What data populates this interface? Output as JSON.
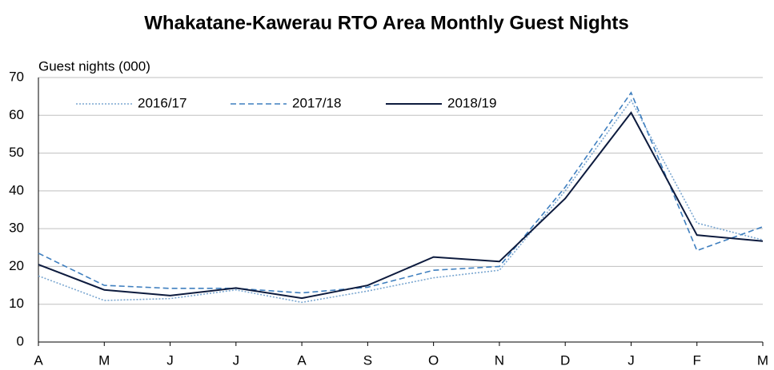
{
  "chart_data": {
    "type": "line",
    "title": "Whakatane-Kawerau RTO Area Monthly Guest Nights",
    "y_label": "Guest nights (000)",
    "categories": [
      "A",
      "M",
      "J",
      "J",
      "A",
      "S",
      "O",
      "N",
      "D",
      "J",
      "F",
      "M"
    ],
    "series": [
      {
        "name": "2016/17",
        "color": "#7ba7d1",
        "dash": "dotted",
        "values": [
          17.5,
          11,
          11.5,
          13.8,
          10.5,
          13.5,
          17,
          19,
          40,
          64,
          31.5,
          27
        ]
      },
      {
        "name": "2017/18",
        "color": "#3f7fbf",
        "dash": "dashed",
        "values": [
          23.5,
          15,
          14.2,
          14.2,
          13,
          14.5,
          19,
          20,
          41,
          66,
          24.2,
          30.5
        ]
      },
      {
        "name": "2018/19",
        "color": "#0d1b3e",
        "dash": "solid",
        "values": [
          20.5,
          13.8,
          12.3,
          14.3,
          11.6,
          15,
          22.5,
          21.3,
          38,
          60.7,
          28.3,
          26.7
        ]
      }
    ],
    "ylim": [
      0,
      70
    ],
    "yticks": [
      0,
      10,
      20,
      30,
      40,
      50,
      60,
      70
    ],
    "grid": true,
    "legend": "top-left"
  }
}
